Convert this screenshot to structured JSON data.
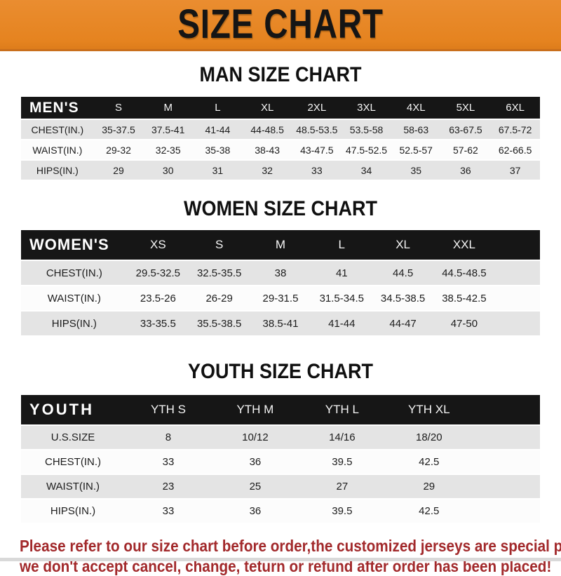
{
  "banner": {
    "title": "SIZE CHART",
    "accent_color": "#E5831F",
    "title_color": "#151515"
  },
  "sections": [
    {
      "heading": "MAN SIZE CHART",
      "table": {
        "label": "MEN'S",
        "columns": [
          "S",
          "M",
          "L",
          "XL",
          "2XL",
          "3XL",
          "4XL",
          "5XL",
          "6XL"
        ],
        "rows": [
          {
            "label": "CHEST(IN.)",
            "values": [
              "35-37.5",
              "37.5-41",
              "41-44",
              "44-48.5",
              "48.5-53.5",
              "53.5-58",
              "58-63",
              "63-67.5",
              "67.5-72"
            ]
          },
          {
            "label": "WAIST(IN.)",
            "values": [
              "29-32",
              "32-35",
              "35-38",
              "38-43",
              "43-47.5",
              "47.5-52.5",
              "52.5-57",
              "57-62",
              "62-66.5"
            ]
          },
          {
            "label": "HIPS(IN.)",
            "values": [
              "29",
              "30",
              "31",
              "32",
              "33",
              "34",
              "35",
              "36",
              "37"
            ]
          }
        ]
      }
    },
    {
      "heading": "WOMEN SIZE CHART",
      "table": {
        "label": "WOMEN'S",
        "columns": [
          "XS",
          "S",
          "M",
          "L",
          "XL",
          "XXL"
        ],
        "rows": [
          {
            "label": "CHEST(IN.)",
            "values": [
              "29.5-32.5",
              "32.5-35.5",
              "38",
              "41",
              "44.5",
              "44.5-48.5"
            ]
          },
          {
            "label": "WAIST(IN.)",
            "values": [
              "23.5-26",
              "26-29",
              "29-31.5",
              "31.5-34.5",
              "34.5-38.5",
              "38.5-42.5"
            ]
          },
          {
            "label": "HIPS(IN.)",
            "values": [
              "33-35.5",
              "35.5-38.5",
              "38.5-41",
              "41-44",
              "44-47",
              "47-50"
            ]
          }
        ]
      }
    },
    {
      "heading": "YOUTH SIZE CHART",
      "table": {
        "label": "YOUTH",
        "columns": [
          "YTH S",
          "YTH M",
          "YTH L",
          "YTH XL"
        ],
        "rows": [
          {
            "label": "U.S.SIZE",
            "values": [
              "8",
              "10/12",
              "14/16",
              "18/20"
            ]
          },
          {
            "label": "CHEST(IN.)",
            "values": [
              "33",
              "36",
              "39.5",
              "42.5"
            ]
          },
          {
            "label": "WAIST(IN.)",
            "values": [
              "23",
              "25",
              "27",
              "29"
            ]
          },
          {
            "label": "HIPS(IN.)",
            "values": [
              "33",
              "36",
              "39.5",
              "42.5"
            ]
          }
        ]
      }
    }
  ],
  "footer": {
    "line1": "Please refer to our size chart before order,the customized jerseys are special products,",
    "line2": "we don't accept cancel, change, teturn or refund after order has been placed!",
    "note_color": "#A2292B"
  }
}
